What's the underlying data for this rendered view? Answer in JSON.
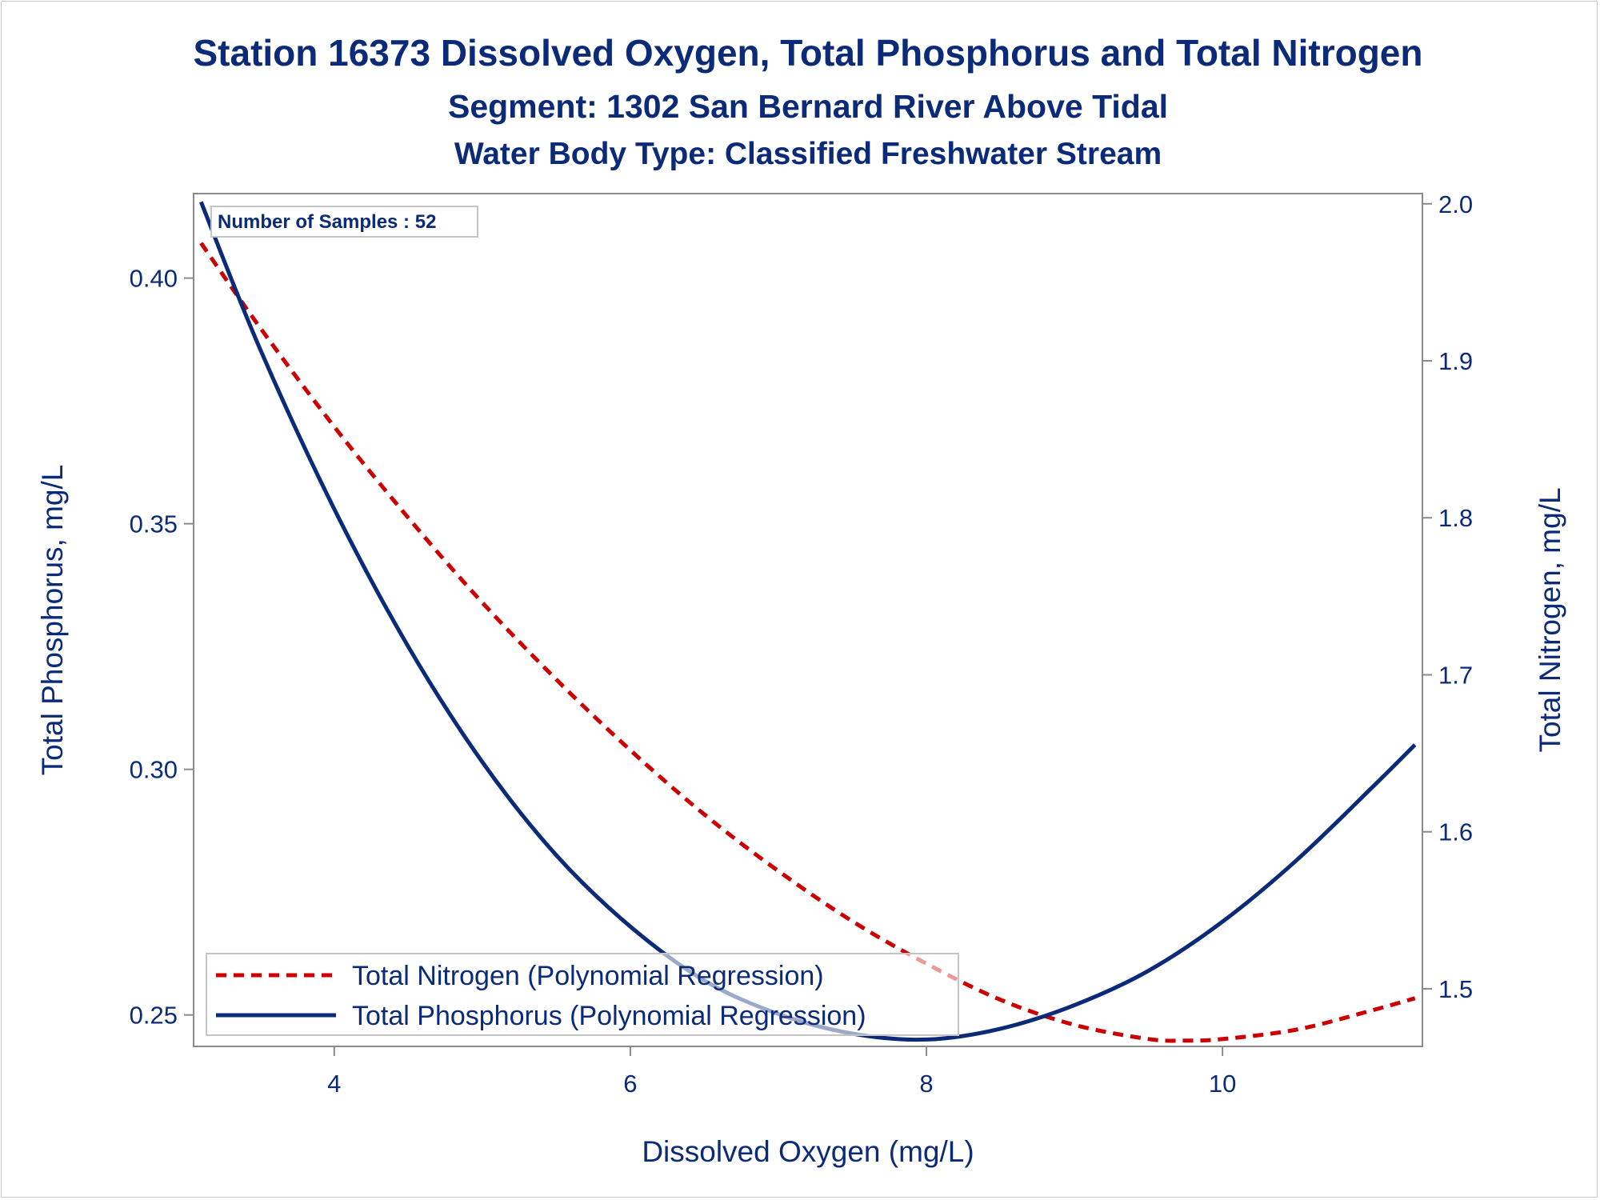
{
  "chart_data": {
    "type": "line",
    "title": "Station 16373  Dissolved Oxygen, Total Phosphorus and Total Nitrogen",
    "subtitle": "Segment: 1302  San Bernard River Above Tidal",
    "subtitle2": "Water Body Type: Classified Freshwater Stream",
    "xlabel": "Dissolved Oxygen (mg/L)",
    "ylabel": "Total Phosphorus, mg/L",
    "y2label": "Total Nitrogen, mg/L",
    "annotation": "Number of Samples : 52",
    "xlim": [
      3.05,
      11.35
    ],
    "ylim": [
      0.2436,
      0.4172
    ],
    "y2lim": [
      1.4633,
      2.0065
    ],
    "x_ticks": [
      "4",
      "6",
      "8",
      "10"
    ],
    "y_ticks": [
      "0.25",
      "0.30",
      "0.35",
      "0.40"
    ],
    "y2_ticks": [
      "1.5",
      "1.6",
      "1.7",
      "1.8",
      "1.9",
      "2.0"
    ],
    "grid": false,
    "legend_position": "bottom-left",
    "series": [
      {
        "name": "Total Nitrogen (Polynomial Regression)",
        "axis": "right",
        "color": "#cc0000",
        "style": "dashed",
        "x": [
          3.1,
          3.5,
          4.0,
          4.5,
          5.0,
          5.5,
          6.0,
          6.5,
          7.0,
          7.5,
          8.0,
          8.5,
          9.0,
          9.5,
          9.75,
          10.0,
          10.5,
          11.0,
          11.3
        ],
        "y": [
          1.975,
          1.921,
          1.858,
          1.8,
          1.746,
          1.697,
          1.652,
          1.611,
          1.575,
          1.543,
          1.516,
          1.493,
          1.477,
          1.468,
          1.467,
          1.468,
          1.474,
          1.486,
          1.494
        ]
      },
      {
        "name": "Total Phosphorus (Polynomial Regression)",
        "axis": "left",
        "color": "#0b2a78",
        "style": "solid",
        "x": [
          3.1,
          3.5,
          4.0,
          4.5,
          5.0,
          5.5,
          6.0,
          6.5,
          7.0,
          7.5,
          8.0,
          8.5,
          9.0,
          9.5,
          10.0,
          10.5,
          11.0,
          11.3
        ],
        "y": [
          0.4155,
          0.3855,
          0.353,
          0.325,
          0.3015,
          0.2825,
          0.268,
          0.257,
          0.2502,
          0.2462,
          0.245,
          0.2472,
          0.252,
          0.259,
          0.269,
          0.2815,
          0.296,
          0.305
        ]
      }
    ]
  }
}
